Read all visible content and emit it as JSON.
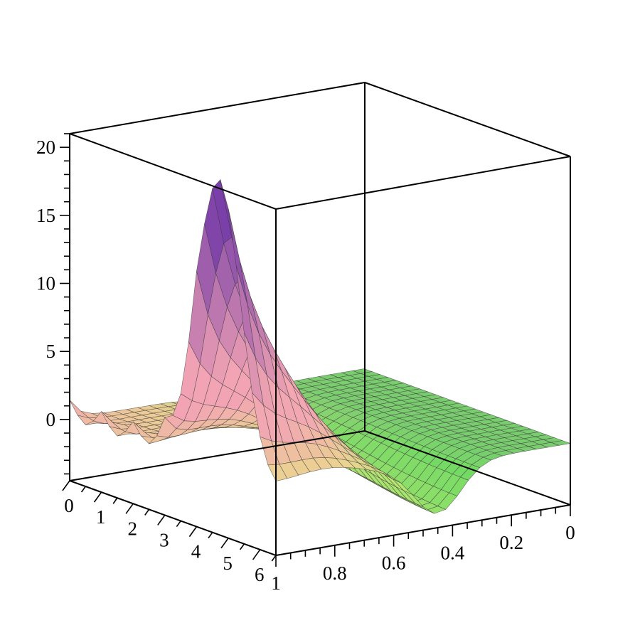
{
  "chart_data": {
    "type": "surface3d",
    "title": "",
    "xlabel": "",
    "ylabel": "",
    "zlabel": "",
    "x_axis": {
      "range": [
        0,
        6.5
      ],
      "ticks": [
        0,
        1,
        2,
        3,
        4,
        5,
        6
      ],
      "tick_labels": [
        "0",
        "1",
        "2",
        "3",
        "4",
        "5",
        "6"
      ]
    },
    "y_axis": {
      "range": [
        0,
        1
      ],
      "ticks": [
        1,
        0.8,
        0.6,
        0.4,
        0.2,
        0
      ],
      "tick_labels": [
        "1",
        "0.8",
        "0.6",
        "0.4",
        "0.2",
        "0"
      ]
    },
    "z_axis": {
      "range": [
        -4.5,
        21
      ],
      "ticks": [
        0,
        5,
        10,
        15,
        20
      ],
      "tick_labels": [
        "0",
        "5",
        "10",
        "15",
        "20"
      ]
    },
    "surface": {
      "description_values": {
        "peak": {
          "x": 4.7,
          "y": 1.0,
          "z": 20.5
        },
        "secondary_peak": {
          "x": 0.0,
          "y": 0.55,
          "z": 2.5
        },
        "ripple_peaks_at_y1": [
          0.5,
          1.5,
          2.5,
          3.5,
          4.5
        ],
        "valley_floor_z": -4.0,
        "flat_region_z": 0.0
      },
      "grid": "mesh",
      "colors": {
        "high": "#7a3fa8",
        "mid": "#f2a4b4",
        "low": "#e6f27a",
        "far": "#5fd65f"
      }
    },
    "box": true,
    "grid": false,
    "legend": "none"
  }
}
